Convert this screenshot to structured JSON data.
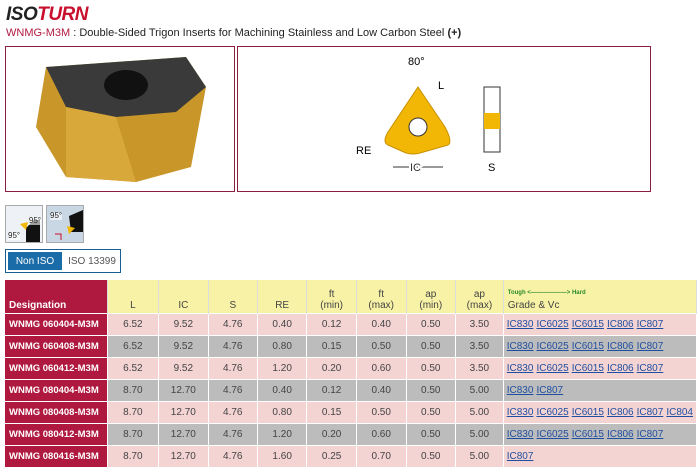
{
  "brand": {
    "part1": "ISO",
    "part2": "TURN"
  },
  "header": {
    "code": "WNMG-M3M",
    "description": " : Double-Sided Trigon Inserts for Machining Stainless and Low Carbon Steel",
    "expand": "(+)"
  },
  "diagram": {
    "angle": "80°",
    "L": "L",
    "RE": "RE",
    "IC": "IC",
    "S": "S"
  },
  "approach_icons": [
    {
      "angle1": "95°",
      "angle2": "95°"
    },
    {
      "angle1": "95°"
    }
  ],
  "tabs": [
    {
      "label": "Non ISO",
      "active": true
    },
    {
      "label": "ISO 13399",
      "active": false
    }
  ],
  "table": {
    "headers": [
      "Designation",
      "L",
      "IC",
      "S",
      "RE",
      "ft\n(min)",
      "ft\n(max)",
      "ap\n(min)",
      "ap\n(max)"
    ],
    "grade_header": {
      "scale": "Tough <——————> Hard",
      "label": "Grade & Vc"
    },
    "rows": [
      {
        "designation": "WNMG 060404-M3M",
        "values": [
          "6.52",
          "9.52",
          "4.76",
          "0.40",
          "0.12",
          "0.40",
          "0.50",
          "3.50"
        ],
        "grades": [
          "IC830",
          "IC6025",
          "IC6015",
          "IC806",
          "IC807"
        ]
      },
      {
        "designation": "WNMG 060408-M3M",
        "values": [
          "6.52",
          "9.52",
          "4.76",
          "0.80",
          "0.15",
          "0.50",
          "0.50",
          "3.50"
        ],
        "grades": [
          "IC830",
          "IC6025",
          "IC6015",
          "IC806",
          "IC807"
        ]
      },
      {
        "designation": "WNMG 060412-M3M",
        "values": [
          "6.52",
          "9.52",
          "4.76",
          "1.20",
          "0.20",
          "0.60",
          "0.50",
          "3.50"
        ],
        "grades": [
          "IC830",
          "IC6025",
          "IC6015",
          "IC806",
          "IC807"
        ]
      },
      {
        "designation": "WNMG 080404-M3M",
        "values": [
          "8.70",
          "12.70",
          "4.76",
          "0.40",
          "0.12",
          "0.40",
          "0.50",
          "5.00"
        ],
        "grades": [
          "IC830",
          "IC807"
        ]
      },
      {
        "designation": "WNMG 080408-M3M",
        "values": [
          "8.70",
          "12.70",
          "4.76",
          "0.80",
          "0.15",
          "0.50",
          "0.50",
          "5.00"
        ],
        "grades": [
          "IC830",
          "IC6025",
          "IC6015",
          "IC806",
          "IC807",
          "IC804"
        ]
      },
      {
        "designation": "WNMG 080412-M3M",
        "values": [
          "8.70",
          "12.70",
          "4.76",
          "1.20",
          "0.20",
          "0.60",
          "0.50",
          "5.00"
        ],
        "grades": [
          "IC830",
          "IC6025",
          "IC6015",
          "IC806",
          "IC807"
        ]
      },
      {
        "designation": "WNMG 080416-M3M",
        "values": [
          "8.70",
          "12.70",
          "4.76",
          "1.60",
          "0.25",
          "0.70",
          "0.50",
          "5.00"
        ],
        "grades": [
          "IC807"
        ]
      }
    ]
  },
  "colors": {
    "brand_red": "#b0193f",
    "header_yellow": "#f7f2a6",
    "row_pink": "#f4d3d3",
    "row_gray": "#bcbcbc",
    "tab_blue": "#1a6ca8",
    "insert_gold": "#f2b705"
  }
}
